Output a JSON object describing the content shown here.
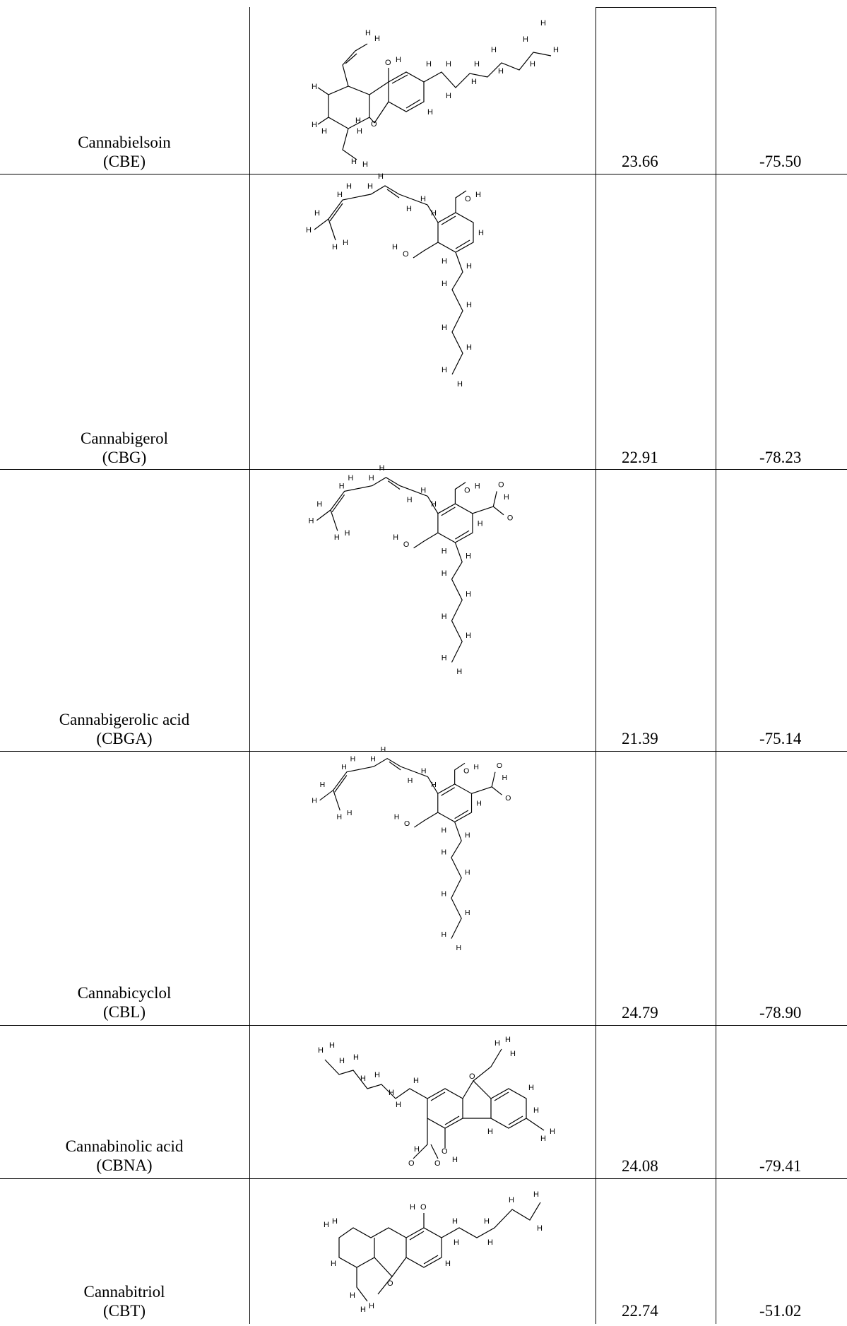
{
  "rows": [
    {
      "name": "Cannabielsoin",
      "abbr": "(CBE)",
      "value1": "23.66",
      "value2": "-75.50",
      "structure": "molecule-structure-cbe"
    },
    {
      "name": "Cannabigerol",
      "abbr": "(CBG)",
      "value1": "22.91",
      "value2": "-78.23",
      "structure": "molecule-structure-cbg"
    },
    {
      "name": "Cannabigerolic acid",
      "abbr": "(CBGA)",
      "value1": "21.39",
      "value2": "-75.14",
      "structure": "molecule-structure-cbga"
    },
    {
      "name": "Cannabicyclol",
      "abbr": "(CBL)",
      "value1": "24.79",
      "value2": "-78.90",
      "structure": "molecule-structure-cbl"
    },
    {
      "name": "Cannabinolic acid",
      "abbr": "(CBNA)",
      "value1": "24.08",
      "value2": "-79.41",
      "structure": "molecule-structure-cbna"
    },
    {
      "name": "Cannabitriol",
      "abbr": "(CBT)",
      "value1": "22.74",
      "value2": "-51.02",
      "structure": "molecule-structure-cbt"
    }
  ],
  "atom_labels": {
    "hydrogen": "H",
    "oxygen": "O"
  }
}
